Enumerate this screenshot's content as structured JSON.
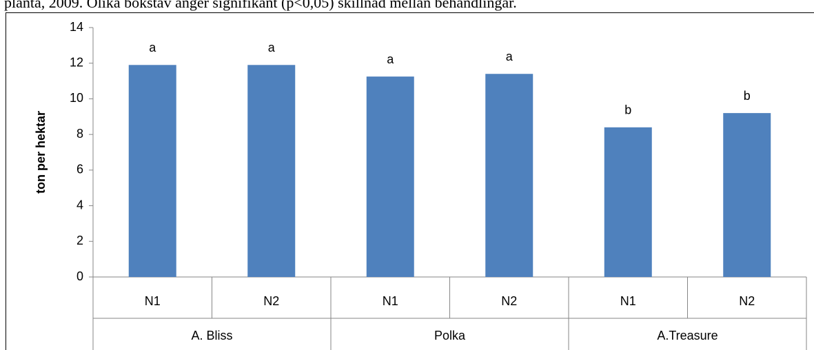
{
  "caption": "planta, 2009. Olika bokstav anger signifikant (p<0,05) skillnad mellan behandlingar.",
  "chart_data": {
    "type": "bar",
    "y_label": "ton per hektar",
    "categories": [
      "N1",
      "N2",
      "N1",
      "N2",
      "N1",
      "N2"
    ],
    "groups": [
      "A. Bliss",
      "Polka",
      "A.Treasure"
    ],
    "values": [
      11.9,
      11.9,
      11.25,
      11.4,
      8.4,
      9.2
    ],
    "bar_labels": [
      "a",
      "a",
      "a",
      "a",
      "b",
      "b"
    ],
    "color": "#4f81bd",
    "ylim": [
      0,
      14
    ],
    "yticks": [
      0,
      2,
      4,
      6,
      8,
      10,
      12,
      14
    ],
    "grid": false
  }
}
